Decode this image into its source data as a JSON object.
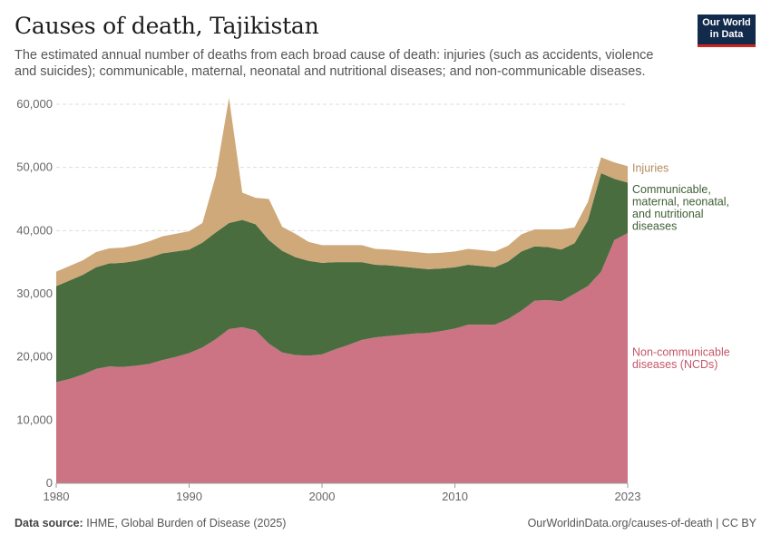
{
  "header": {
    "title": "Causes of death, Tajikistan",
    "subtitle": "The estimated annual number of deaths from each broad cause of death: injuries (such as accidents, violence and suicides); communicable, maternal, neonatal and nutritional diseases; and non-communicable diseases."
  },
  "logo": {
    "line1": "Our World",
    "line2": "in Data"
  },
  "footer": {
    "source_label": "Data source:",
    "source_text": "IHME, Global Burden of Disease (2025)",
    "url": "OurWorldinData.org/causes-of-death | CC BY"
  },
  "colors": {
    "ncd": "#cc7483",
    "communicable": "#4a6d40",
    "injuries": "#cfa979",
    "axis": "#666666",
    "grid": "#dddddd"
  },
  "chart_data": {
    "type": "area",
    "stacked": true,
    "title": "Causes of death, Tajikistan",
    "xlabel": "",
    "ylabel": "",
    "ylim": [
      0,
      60000
    ],
    "yticks": [
      0,
      10000,
      20000,
      30000,
      40000,
      50000,
      60000
    ],
    "ytick_labels": [
      "0",
      "10,000",
      "20,000",
      "30,000",
      "40,000",
      "50,000",
      "60,000"
    ],
    "xlim": [
      1980,
      2023
    ],
    "xticks": [
      1980,
      1990,
      2000,
      2010,
      2023
    ],
    "xtick_labels": [
      "1980",
      "1990",
      "2000",
      "2010",
      "2023"
    ],
    "x": [
      1980,
      1981,
      1982,
      1983,
      1984,
      1985,
      1986,
      1987,
      1988,
      1989,
      1990,
      1991,
      1992,
      1993,
      1994,
      1995,
      1996,
      1997,
      1998,
      1999,
      2000,
      2001,
      2002,
      2003,
      2004,
      2005,
      2006,
      2007,
      2008,
      2009,
      2010,
      2011,
      2012,
      2013,
      2014,
      2015,
      2016,
      2017,
      2018,
      2019,
      2020,
      2021,
      2022,
      2023
    ],
    "series": [
      {
        "name": "Non-communicable diseases (NCDs)",
        "label_lines": [
          "Non-communicable",
          "diseases (NCDs)"
        ],
        "color": "#cc7483",
        "values": [
          16000,
          16500,
          17200,
          18100,
          18500,
          18400,
          18600,
          18900,
          19500,
          20000,
          20600,
          21500,
          22800,
          24400,
          24700,
          24200,
          22100,
          20700,
          20300,
          20200,
          20400,
          21200,
          21900,
          22700,
          23100,
          23300,
          23500,
          23700,
          23800,
          24100,
          24500,
          25100,
          25100,
          25100,
          26000,
          27300,
          28900,
          29000,
          28800,
          30000,
          31200,
          33500,
          38500,
          39600
        ]
      },
      {
        "name": "Communicable, maternal, neonatal, and nutritional diseases",
        "label_lines": [
          "Communicable,",
          "maternal, neonatal,",
          "and nutritional",
          "diseases"
        ],
        "color": "#4a6d40",
        "values": [
          15200,
          15600,
          15800,
          16100,
          16300,
          16500,
          16600,
          16800,
          16900,
          16700,
          16400,
          16600,
          16900,
          16800,
          17000,
          16800,
          16400,
          16100,
          15500,
          15000,
          14500,
          13800,
          13100,
          12300,
          11500,
          11200,
          10800,
          10400,
          10100,
          9900,
          9700,
          9500,
          9300,
          9100,
          9100,
          9400,
          8600,
          8400,
          8200,
          8000,
          10400,
          15600,
          9700,
          8000
        ]
      },
      {
        "name": "Injuries",
        "label_lines": [
          "Injuries"
        ],
        "color": "#cfa979",
        "values": [
          2300,
          2300,
          2300,
          2400,
          2400,
          2400,
          2500,
          2600,
          2700,
          2800,
          2900,
          3100,
          8900,
          19800,
          4300,
          4200,
          6500,
          3800,
          3700,
          3000,
          2800,
          2700,
          2700,
          2700,
          2500,
          2500,
          2500,
          2500,
          2500,
          2500,
          2500,
          2500,
          2500,
          2500,
          2500,
          2700,
          2700,
          2800,
          3200,
          2500,
          2900,
          2500,
          2600,
          2600
        ]
      }
    ]
  }
}
